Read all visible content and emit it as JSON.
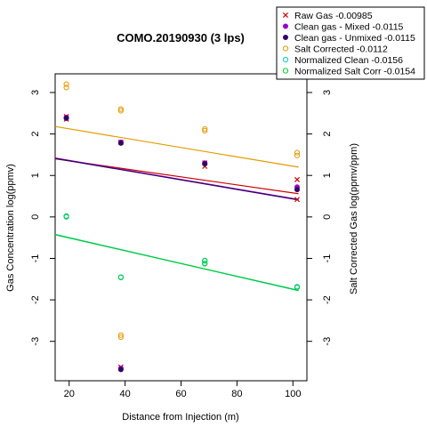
{
  "chart_data": {
    "type": "scatter",
    "title": "COMO.20190930 (3 lps)",
    "xlabel": "Distance from Injection (m)",
    "ylabel": "Gas Concentration log(ppmv)",
    "ylabel_right": "Salt Corrected Gas log(ppmv/ppm)",
    "xlim": [
      15,
      105
    ],
    "ylim": [
      -3.95,
      3.45
    ],
    "x_ticks": [
      20,
      40,
      60,
      80,
      100
    ],
    "y_ticks": [
      -3,
      -2,
      -1,
      0,
      1,
      2,
      3
    ],
    "legend_position": "top-right",
    "series": [
      {
        "name": "Raw Gas -0.00985",
        "color": "#cc0000",
        "marker": "x",
        "points": [
          [
            19,
            2.42
          ],
          [
            19,
            2.36
          ],
          [
            38.5,
            1.8
          ],
          [
            38.5,
            -3.62
          ],
          [
            68.5,
            1.22
          ],
          [
            68.5,
            1.3
          ],
          [
            101.5,
            0.9
          ],
          [
            101.5,
            0.42
          ]
        ],
        "fit": {
          "x": [
            15,
            102
          ],
          "y": [
            1.4,
            0.56
          ]
        }
      },
      {
        "name": "Clean gas - Mixed -0.0115",
        "color": "#9900cc",
        "marker": "filled-circle",
        "points": [
          [
            19,
            2.4
          ],
          [
            38.5,
            1.8
          ],
          [
            38.5,
            -3.65
          ],
          [
            68.5,
            1.3
          ],
          [
            101.5,
            0.72
          ]
        ],
        "fit": {
          "x": [
            15,
            102
          ],
          "y": [
            1.42,
            0.42
          ]
        }
      },
      {
        "name": "Clean gas - Unmixed -0.0115",
        "color": "#330066",
        "marker": "filled-circle",
        "points": [
          [
            19,
            2.38
          ],
          [
            38.5,
            1.78
          ],
          [
            38.5,
            -3.68
          ],
          [
            68.5,
            1.28
          ],
          [
            101.5,
            0.66
          ]
        ],
        "fit": {
          "x": [
            15,
            102
          ],
          "y": [
            1.41,
            0.41
          ]
        }
      },
      {
        "name": "Salt Corrected -0.0112",
        "color": "#e69900",
        "marker": "open-circle",
        "points": [
          [
            19,
            3.2
          ],
          [
            19,
            3.12
          ],
          [
            38.5,
            2.6
          ],
          [
            38.5,
            2.56
          ],
          [
            38.5,
            -2.85
          ],
          [
            38.5,
            -2.9
          ],
          [
            68.5,
            2.12
          ],
          [
            68.5,
            2.08
          ],
          [
            101.5,
            1.55
          ],
          [
            101.5,
            1.48
          ]
        ],
        "fit": {
          "x": [
            15,
            102
          ],
          "y": [
            2.18,
            1.2
          ]
        }
      },
      {
        "name": "Normalized Clean -0.0156",
        "color": "#00cccc",
        "marker": "open-circle",
        "points": [
          [
            19,
            0.0
          ],
          [
            38.5,
            -1.45
          ],
          [
            68.5,
            -1.05
          ],
          [
            68.5,
            -1.12
          ],
          [
            101.5,
            -1.68
          ]
        ],
        "fit": {
          "x": [
            15,
            102
          ],
          "y": [
            -0.42,
            -1.78
          ]
        }
      },
      {
        "name": "Normalized Salt Corr -0.0154",
        "color": "#00cc33",
        "marker": "open-circle",
        "points": [
          [
            19,
            0.02
          ],
          [
            38.5,
            -1.46
          ],
          [
            68.5,
            -1.06
          ],
          [
            68.5,
            -1.13
          ],
          [
            101.5,
            -1.7
          ]
        ],
        "fit": {
          "x": [
            15,
            102
          ],
          "y": [
            -0.43,
            -1.77
          ]
        }
      }
    ]
  }
}
